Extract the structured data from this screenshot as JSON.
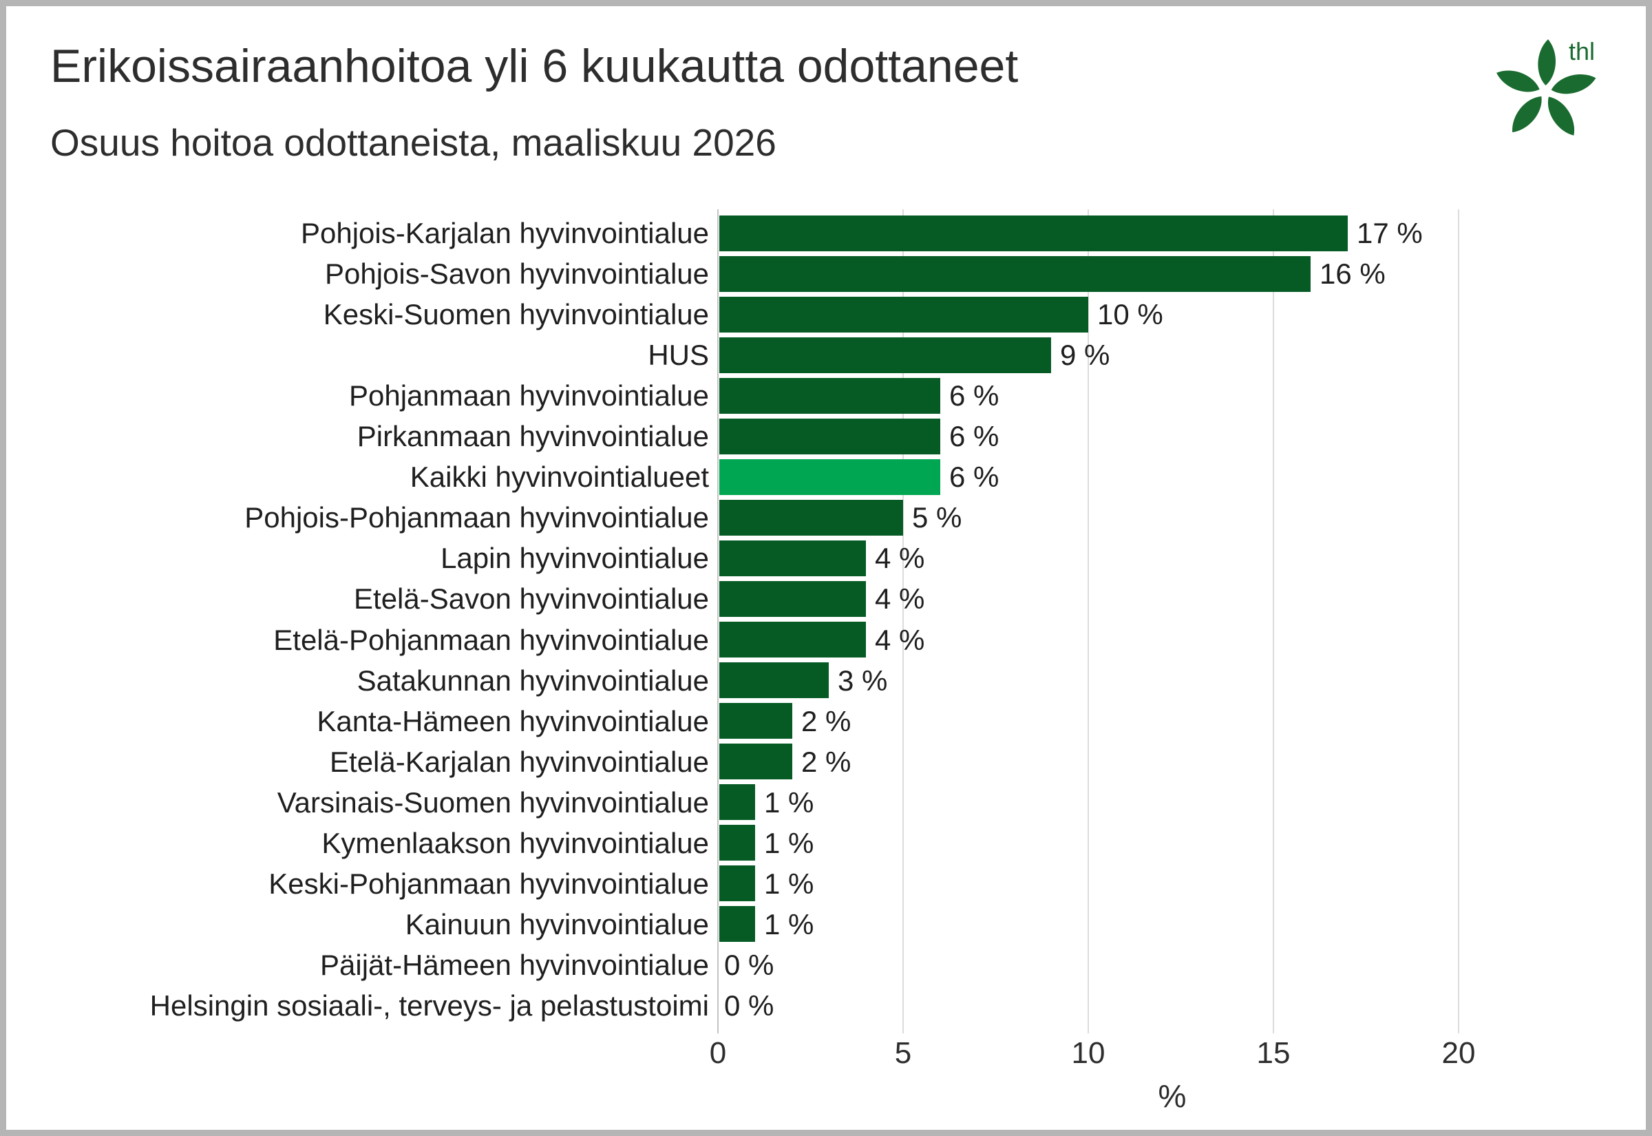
{
  "title": "Erikoissairaanhoitoa yli 6 kuukautta odottaneet",
  "subtitle": "Osuus hoitoa odottaneista, maaliskuu 2026",
  "logo": {
    "text": "thl"
  },
  "colors": {
    "bar": "#065b25",
    "highlight": "#00a651",
    "grid": "#dcdcdc",
    "axis": "#c4c4c4",
    "logo_green": "#1a6b30"
  },
  "chart_data": {
    "type": "bar",
    "orientation": "horizontal",
    "title": "Erikoissairaanhoitoa yli 6 kuukautta odottaneet",
    "subtitle": "Osuus hoitoa odottaneista, maaliskuu 2026",
    "xlabel": "%",
    "xlim": [
      0,
      20
    ],
    "xticks": [
      0,
      5,
      10,
      15,
      20
    ],
    "grid": "vertical-on",
    "legend": "none",
    "highlight_index": 6,
    "categories": [
      "Pohjois-Karjalan hyvinvointialue",
      "Pohjois-Savon hyvinvointialue",
      "Keski-Suomen hyvinvointialue",
      "HUS",
      "Pohjanmaan hyvinvointialue",
      "Pirkanmaan hyvinvointialue",
      "Kaikki hyvinvointialueet",
      "Pohjois-Pohjanmaan hyvinvointialue",
      "Lapin hyvinvointialue",
      "Etelä-Savon hyvinvointialue",
      "Etelä-Pohjanmaan hyvinvointialue",
      "Satakunnan hyvinvointialue",
      "Kanta-Hämeen hyvinvointialue",
      "Etelä-Karjalan hyvinvointialue",
      "Varsinais-Suomen hyvinvointialue",
      "Kymenlaakson hyvinvointialue",
      "Keski-Pohjanmaan hyvinvointialue",
      "Kainuun hyvinvointialue",
      "Päijät-Hämeen hyvinvointialue",
      "Helsingin sosiaali-, terveys- ja pelastustoimi"
    ],
    "values": [
      17,
      16,
      10,
      9,
      6,
      6,
      6,
      5,
      4,
      4,
      4,
      3,
      2,
      2,
      1,
      1,
      1,
      1,
      0,
      0
    ],
    "display_labels": [
      "17 %",
      "16 %",
      "10 %",
      "9 %",
      "6 %",
      "6 %",
      "6 %",
      "5 %",
      "4 %",
      "4 %",
      "4 %",
      "3 %",
      "2 %",
      "2 %",
      "1 %",
      "1 %",
      "1 %",
      "1 %",
      "0 %",
      "0 %"
    ]
  }
}
